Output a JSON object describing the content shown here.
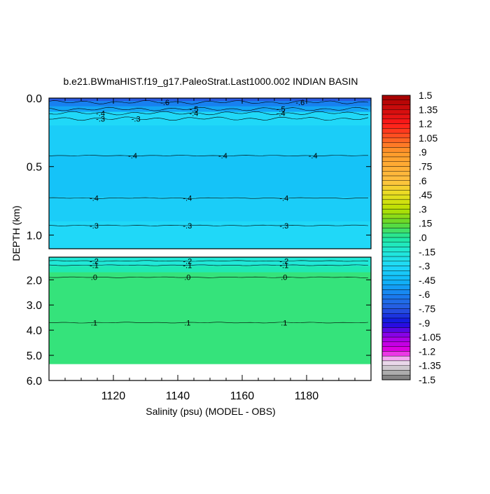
{
  "chart_data": {
    "type": "contour",
    "title": "b.e21.BWmaHIST.f19_g17.PaleoStrat.Last1000.002 INDIAN BASIN",
    "xlabel": "Salinity (psu) (MODEL - OBS)",
    "ylabel": "DEPTH (km)",
    "xlim": [
      1100,
      1200
    ],
    "x_ticks": [
      1120,
      1140,
      1160,
      1180
    ],
    "x_tick_labels": [
      "1120",
      "1140",
      "1160",
      "1180"
    ],
    "upper_panel": {
      "ylim": [
        0.0,
        1.1
      ],
      "y_ticks": [
        0.0,
        0.5,
        1.0
      ],
      "y_tick_labels": [
        "0.0",
        "0.5",
        "1.0"
      ],
      "bands": [
        {
          "top": 0.0,
          "bottom": 0.02,
          "value": -0.75
        },
        {
          "top": 0.02,
          "bottom": 0.06,
          "value": -0.6
        },
        {
          "top": 0.06,
          "bottom": 0.1,
          "value": -0.5
        },
        {
          "top": 0.1,
          "bottom": 0.2,
          "value": -0.3
        },
        {
          "top": 0.2,
          "bottom": 0.42,
          "value": -0.35
        },
        {
          "top": 0.42,
          "bottom": 0.72,
          "value": -0.4
        },
        {
          "top": 0.72,
          "bottom": 0.9,
          "value": -0.35
        },
        {
          "top": 0.9,
          "bottom": 1.1,
          "value": -0.3
        }
      ],
      "contours": [
        {
          "depth": 0.03,
          "label": "-.6",
          "label_x": [
            1136,
            1178
          ]
        },
        {
          "depth": 0.08,
          "label": "-.5",
          "label_x": [
            1145,
            1172
          ]
        },
        {
          "depth": 0.11,
          "label": "-.4",
          "label_x": [
            1116,
            1145,
            1172
          ]
        },
        {
          "depth": 0.15,
          "label": "-.3",
          "label_x": [
            1116,
            1127
          ]
        },
        {
          "depth": 0.42,
          "label": "-.4",
          "label_x": [
            1126,
            1154,
            1182
          ]
        },
        {
          "depth": 0.73,
          "label": "-.4",
          "label_x": [
            1114,
            1143,
            1173
          ]
        },
        {
          "depth": 0.93,
          "label": "-.3",
          "label_x": [
            1114,
            1143,
            1173
          ]
        }
      ]
    },
    "lower_panel": {
      "ylim": [
        1.1,
        6.0
      ],
      "y_ticks": [
        2.0,
        3.0,
        4.0,
        5.0,
        6.0
      ],
      "y_tick_labels": [
        "2.0",
        "3.0",
        "4.0",
        "5.0",
        "6.0"
      ],
      "bands": [
        {
          "top": 1.1,
          "bottom": 1.45,
          "value": -0.15
        },
        {
          "top": 1.45,
          "bottom": 1.7,
          "value": -0.05
        },
        {
          "top": 1.7,
          "bottom": 5.35,
          "value": 0.05
        }
      ],
      "seafloor_depth": 5.35,
      "contours": [
        {
          "depth": 1.25,
          "label": "-.2",
          "label_x": [
            1114,
            1143,
            1173
          ]
        },
        {
          "depth": 1.42,
          "label": "-.1",
          "label_x": [
            1114,
            1143,
            1173
          ]
        },
        {
          "depth": 1.9,
          "label": ".0",
          "label_x": [
            1114,
            1143,
            1173
          ]
        },
        {
          "depth": 3.7,
          "label": ".1",
          "label_x": [
            1114,
            1143,
            1173
          ]
        }
      ]
    },
    "colorbar": {
      "labels": [
        "1.5",
        "1.35",
        "1.2",
        "1.05",
        ".9",
        ".75",
        ".6",
        ".45",
        ".3",
        ".15",
        ".0",
        "-.15",
        "-.3",
        "-.45",
        "-.6",
        "-.75",
        "-.9",
        "-1.05",
        "-1.2",
        "-1.35",
        "-1.5"
      ],
      "stops": [
        {
          "v": 1.5,
          "c": "#a00000"
        },
        {
          "v": 1.2,
          "c": "#ff1a1a"
        },
        {
          "v": 0.9,
          "c": "#ff9a2a"
        },
        {
          "v": 0.6,
          "c": "#ffc040"
        },
        {
          "v": 0.45,
          "c": "#e8e020"
        },
        {
          "v": 0.3,
          "c": "#b8e000"
        },
        {
          "v": 0.15,
          "c": "#60d830"
        },
        {
          "v": 0.0,
          "c": "#20e8a0"
        },
        {
          "v": -0.15,
          "c": "#20e8d8"
        },
        {
          "v": -0.3,
          "c": "#20d8f8"
        },
        {
          "v": -0.45,
          "c": "#10b8f8"
        },
        {
          "v": -0.6,
          "c": "#1880f0"
        },
        {
          "v": -0.75,
          "c": "#2858e0"
        },
        {
          "v": -0.9,
          "c": "#1010e0"
        },
        {
          "v": -1.05,
          "c": "#a000e8"
        },
        {
          "v": -1.2,
          "c": "#e800e0"
        },
        {
          "v": -1.3,
          "c": "#f8e0f8"
        },
        {
          "v": -1.4,
          "c": "#c0c0c0"
        },
        {
          "v": -1.5,
          "c": "#707070"
        }
      ]
    }
  }
}
